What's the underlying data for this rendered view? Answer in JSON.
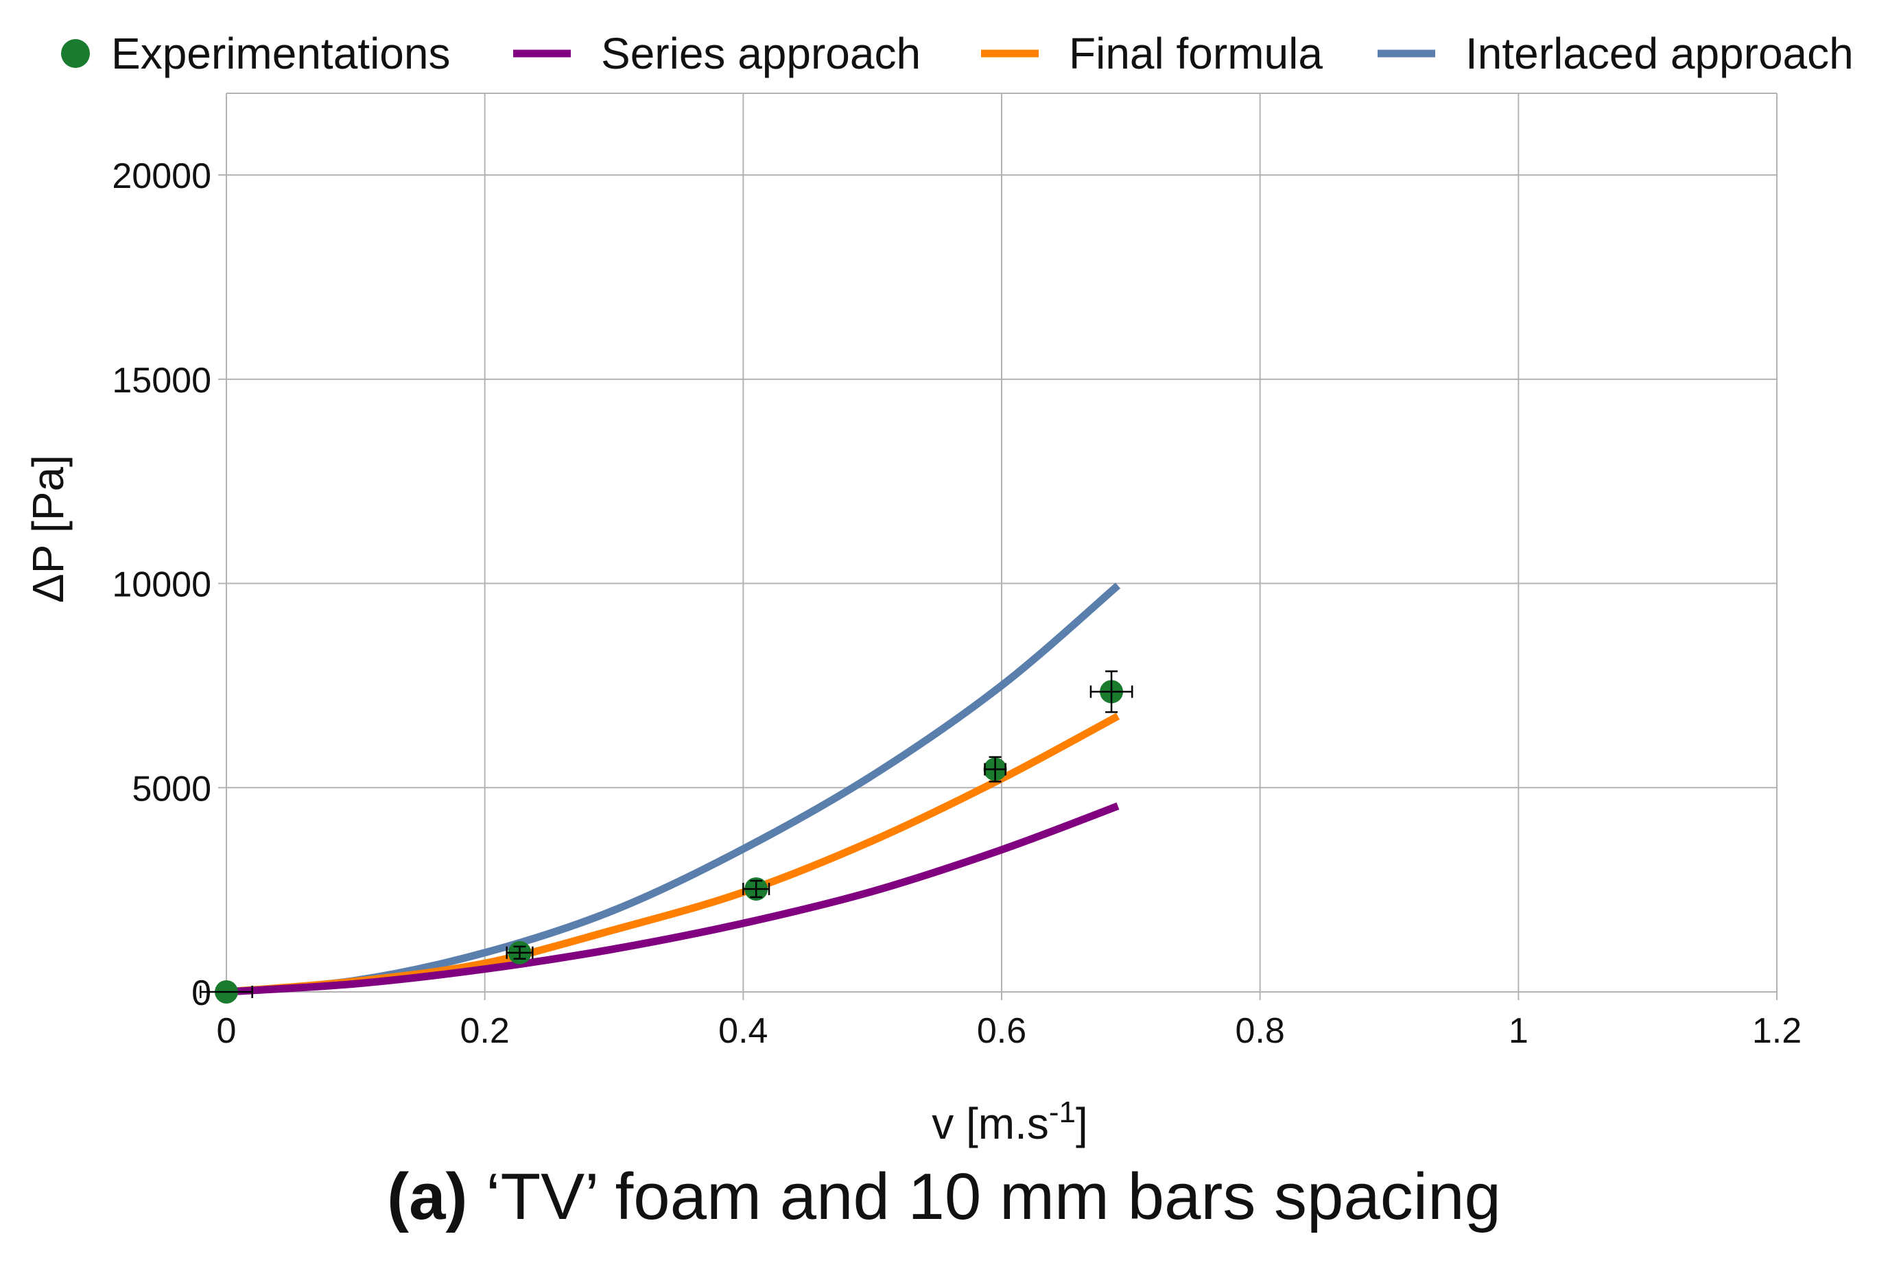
{
  "chart_data": {
    "type": "line",
    "xlabel_main": "v [m.s",
    "xlabel_sup": "-1",
    "xlabel_end": "]",
    "ylabel": "ΔP [Pa]",
    "xlim": [
      0,
      1.2
    ],
    "ylim": [
      0,
      22000
    ],
    "x_ticks": [
      0,
      0.2,
      0.4,
      0.6,
      0.8,
      1,
      1.2
    ],
    "x_tick_labels": [
      "0",
      "0.2",
      "0.4",
      "0.6",
      "0.8",
      "1",
      "1.2"
    ],
    "y_ticks": [
      0,
      5000,
      10000,
      15000,
      20000
    ],
    "y_tick_labels": [
      "0",
      "5000",
      "10000",
      "15000",
      "20000"
    ],
    "grid": true,
    "legend_position": "top",
    "series": [
      {
        "name": "Experimentations",
        "kind": "scatter",
        "color": "#1a7a2e",
        "points": [
          {
            "x": 0,
            "y": 0,
            "xerr": 0.02,
            "yerr": 0
          },
          {
            "x": 0.227,
            "y": 960,
            "xerr": 0.01,
            "yerr": 150
          },
          {
            "x": 0.41,
            "y": 2520,
            "xerr": 0.01,
            "yerr": 200
          },
          {
            "x": 0.595,
            "y": 5450,
            "xerr": 0.008,
            "yerr": 300
          },
          {
            "x": 0.685,
            "y": 7350,
            "xerr": 0.016,
            "yerr": 500
          }
        ]
      },
      {
        "name": "Series approach",
        "kind": "line",
        "color": "#800080",
        "x": [
          0,
          0.1,
          0.2,
          0.3,
          0.4,
          0.5,
          0.6,
          0.69
        ],
        "y": [
          0,
          200,
          560,
          1050,
          1680,
          2460,
          3480,
          4550
        ]
      },
      {
        "name": "Final formula",
        "kind": "line",
        "color": "#ff8000",
        "x": [
          0,
          0.1,
          0.2,
          0.3,
          0.4,
          0.5,
          0.6,
          0.69
        ],
        "y": [
          0,
          260,
          700,
          1520,
          2440,
          3700,
          5220,
          6750
        ]
      },
      {
        "name": "Interlaced approach",
        "kind": "line",
        "color": "#5b7fad",
        "x": [
          0,
          0.1,
          0.2,
          0.3,
          0.4,
          0.5,
          0.6,
          0.69
        ],
        "y": [
          0,
          280,
          960,
          2000,
          3500,
          5300,
          7500,
          9950
        ]
      }
    ]
  },
  "caption": {
    "label": "(a)",
    "text": " ‘TV’ foam and 10 mm bars spacing"
  }
}
